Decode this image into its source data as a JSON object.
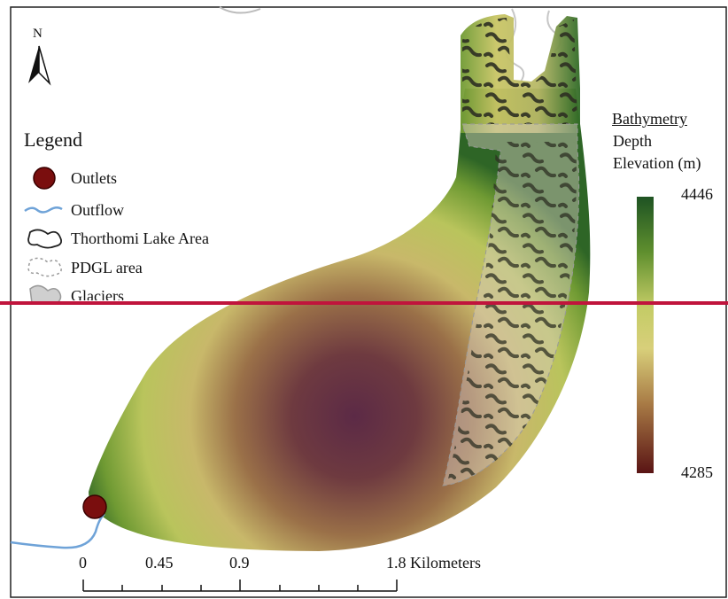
{
  "north": {
    "label": "N",
    "icon": "north-arrow-icon"
  },
  "legend": {
    "title": "Legend",
    "items": [
      {
        "label": "Outlets",
        "icon": "outlet-dot-icon",
        "color": "#7a0e0e"
      },
      {
        "label": "Outflow",
        "icon": "outflow-line-icon",
        "color": "#6fa3d8"
      },
      {
        "label": "Thorthomi Lake Area",
        "icon": "lake-outline-icon",
        "color": "#222222"
      },
      {
        "label": "PDGL area",
        "icon": "pdgl-outline-icon",
        "color": "#9a9a9a"
      },
      {
        "label": "Glaciers",
        "icon": "glacier-icon",
        "color": "#b5b5b5"
      }
    ]
  },
  "bathymetry": {
    "title": "Bathymetry",
    "subtitle_line1": "Depth",
    "subtitle_line2": "Elevation (m)",
    "max": "4446",
    "min": "4285",
    "colors": [
      "#1e5323",
      "#5f8f2e",
      "#b7c65a",
      "#d8d27a",
      "#b48a48",
      "#7a3a22",
      "#5a1414"
    ]
  },
  "scale_bar": {
    "labels": [
      "0",
      "0.45",
      "0.9",
      "1.8 Kilometers"
    ]
  },
  "overlay": {
    "color": "#c0143c"
  }
}
